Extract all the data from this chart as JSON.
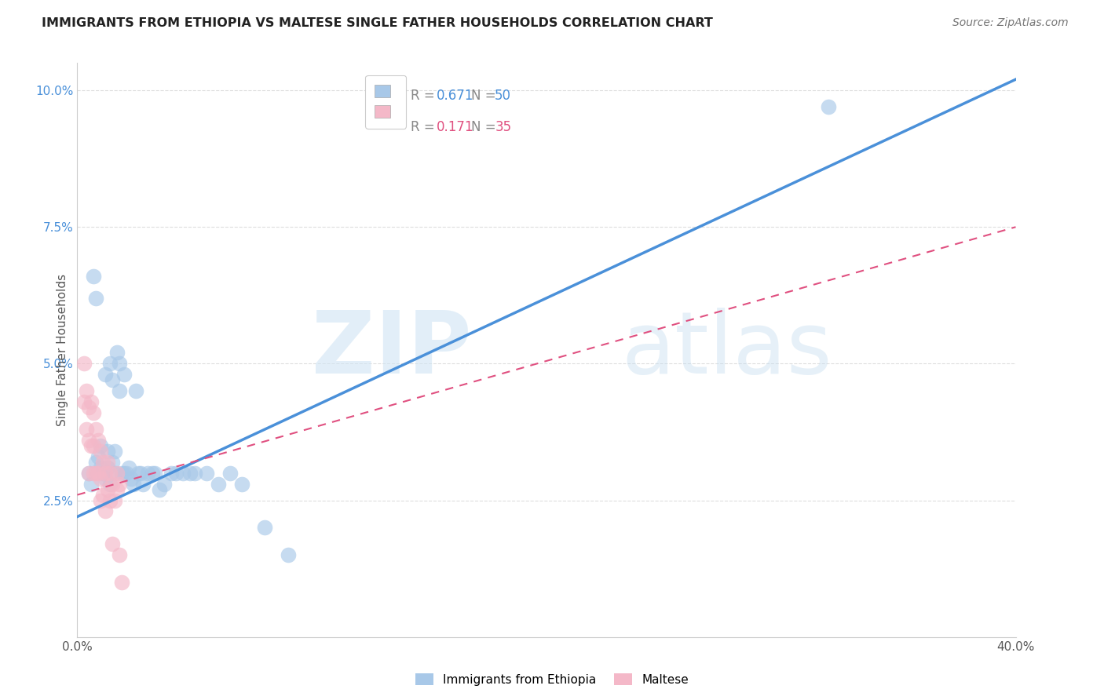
{
  "title": "IMMIGRANTS FROM ETHIOPIA VS MALTESE SINGLE FATHER HOUSEHOLDS CORRELATION CHART",
  "source": "Source: ZipAtlas.com",
  "ylabel_label": "Single Father Households",
  "legend_1_label": "Immigrants from Ethiopia",
  "legend_2_label": "Maltese",
  "R1": 0.671,
  "N1": 50,
  "R2": 0.171,
  "N2": 35,
  "blue_color": "#a8c8e8",
  "pink_color": "#f4b8c8",
  "trend_blue": "#4a90d9",
  "trend_pink": "#e05080",
  "xlim": [
    0.0,
    0.4
  ],
  "ylim": [
    0.0,
    0.105
  ],
  "xticks": [
    0.0,
    0.1,
    0.2,
    0.3,
    0.4
  ],
  "xtick_labels": [
    "0.0%",
    "",
    "",
    "",
    "40.0%"
  ],
  "yticks_right": [
    0.025,
    0.05,
    0.075,
    0.1
  ],
  "ytick_labels_right": [
    "2.5%",
    "5.0%",
    "7.5%",
    "10.0%"
  ],
  "grid_color": "#dddddd",
  "background_color": "#ffffff",
  "blue_trend_x0": 0.0,
  "blue_trend_y0": 0.022,
  "blue_trend_x1": 0.4,
  "blue_trend_y1": 0.102,
  "pink_trend_x0": 0.0,
  "pink_trend_y0": 0.026,
  "pink_trend_x1": 0.4,
  "pink_trend_y1": 0.075,
  "blue_points_x": [
    0.005,
    0.006,
    0.007,
    0.008,
    0.008,
    0.009,
    0.01,
    0.01,
    0.011,
    0.012,
    0.012,
    0.013,
    0.013,
    0.014,
    0.014,
    0.015,
    0.015,
    0.016,
    0.016,
    0.017,
    0.018,
    0.018,
    0.019,
    0.02,
    0.02,
    0.021,
    0.022,
    0.023,
    0.024,
    0.025,
    0.026,
    0.027,
    0.028,
    0.03,
    0.032,
    0.033,
    0.035,
    0.037,
    0.04,
    0.042,
    0.045,
    0.048,
    0.05,
    0.055,
    0.06,
    0.065,
    0.07,
    0.08,
    0.09,
    0.32
  ],
  "blue_points_y": [
    0.03,
    0.028,
    0.066,
    0.062,
    0.032,
    0.033,
    0.031,
    0.035,
    0.03,
    0.029,
    0.048,
    0.034,
    0.031,
    0.05,
    0.028,
    0.047,
    0.032,
    0.03,
    0.034,
    0.052,
    0.05,
    0.045,
    0.03,
    0.03,
    0.048,
    0.03,
    0.031,
    0.029,
    0.028,
    0.045,
    0.03,
    0.03,
    0.028,
    0.03,
    0.03,
    0.03,
    0.027,
    0.028,
    0.03,
    0.03,
    0.03,
    0.03,
    0.03,
    0.03,
    0.028,
    0.03,
    0.028,
    0.02,
    0.015,
    0.097
  ],
  "pink_points_x": [
    0.003,
    0.003,
    0.004,
    0.004,
    0.005,
    0.005,
    0.005,
    0.006,
    0.006,
    0.007,
    0.007,
    0.007,
    0.008,
    0.008,
    0.009,
    0.009,
    0.01,
    0.01,
    0.01,
    0.011,
    0.011,
    0.012,
    0.012,
    0.013,
    0.013,
    0.014,
    0.014,
    0.015,
    0.015,
    0.016,
    0.017,
    0.017,
    0.018,
    0.018,
    0.019
  ],
  "pink_points_y": [
    0.05,
    0.043,
    0.045,
    0.038,
    0.042,
    0.036,
    0.03,
    0.043,
    0.035,
    0.041,
    0.035,
    0.03,
    0.038,
    0.03,
    0.036,
    0.03,
    0.034,
    0.029,
    0.025,
    0.032,
    0.026,
    0.03,
    0.023,
    0.032,
    0.027,
    0.03,
    0.025,
    0.028,
    0.017,
    0.025,
    0.03,
    0.027,
    0.028,
    0.015,
    0.01
  ]
}
